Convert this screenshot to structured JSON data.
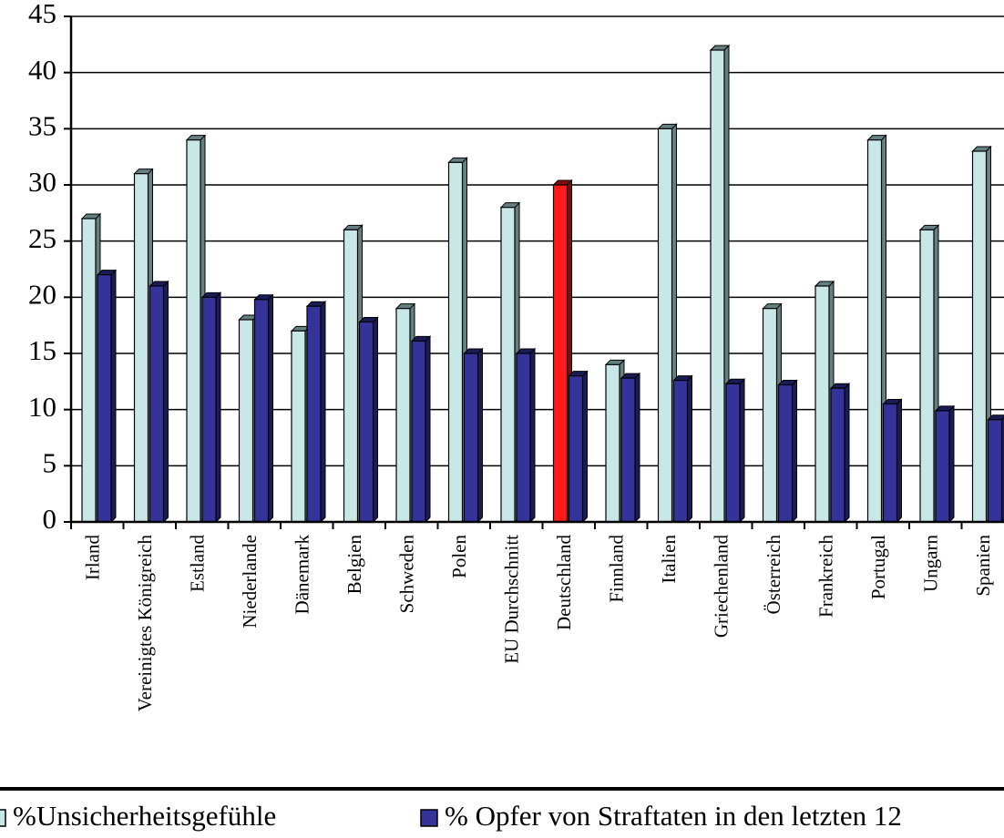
{
  "chart_data": {
    "type": "bar3d",
    "categories": [
      "Irland",
      "Vereinigtes Königreich",
      "Estland",
      "Niederlande",
      "Dänemark",
      "Belgien",
      "Schweden",
      "Polen",
      "EU Durchschnitt",
      "Deutschland",
      "Finnland",
      "Italien",
      "Griechenland",
      "Österreich",
      "Frankreich",
      "Portugal",
      "Ungarn",
      "Spanien"
    ],
    "series": [
      {
        "name": "%Unsicherheitsgefühle",
        "color": "#c8e8e8",
        "values": [
          27,
          31,
          34,
          18,
          17,
          26,
          19,
          32,
          28,
          30,
          14,
          35,
          42,
          19,
          21,
          34,
          26,
          33
        ],
        "point_colors": [
          "#c8e8e8",
          "#c8e8e8",
          "#c8e8e8",
          "#c8e8e8",
          "#c8e8e8",
          "#c8e8e8",
          "#c8e8e8",
          "#c8e8e8",
          "#c8e8e8",
          "#ff1a1a",
          "#c8e8e8",
          "#c8e8e8",
          "#c8e8e8",
          "#c8e8e8",
          "#c8e8e8",
          "#c8e8e8",
          "#c8e8e8",
          "#c8e8e8"
        ]
      },
      {
        "name": "% Opfer von Straftaten in den letzten 12",
        "color": "#33339a",
        "values": [
          22,
          21,
          20,
          19.8,
          19.2,
          17.8,
          16.1,
          15,
          15,
          13,
          12.8,
          12.6,
          12.3,
          12.2,
          11.9,
          10.5,
          9.9,
          9.1
        ]
      }
    ],
    "ylim": [
      0,
      45
    ],
    "yticks": [
      0,
      5,
      10,
      15,
      20,
      25,
      30,
      35,
      40,
      45
    ],
    "grid": true
  }
}
